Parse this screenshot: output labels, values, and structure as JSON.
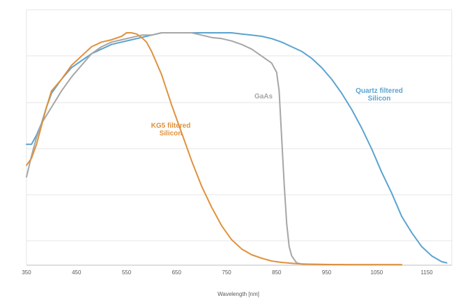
{
  "chart_data": {
    "type": "line",
    "title": "",
    "xlabel": "Wavelength [nm]",
    "ylabel": "",
    "xlim": [
      350,
      1200
    ],
    "ylim": [
      0,
      1
    ],
    "x_ticks": [
      350,
      450,
      550,
      650,
      750,
      850,
      950,
      1050,
      1150
    ],
    "x_tick_labels": [
      "350",
      "450",
      "550",
      "650",
      "750",
      "850",
      "950",
      "1050",
      "1150"
    ],
    "grid": true,
    "legend": "none",
    "series": [
      {
        "name": "Quartz filtered Silicon",
        "label_lines": [
          "Quartz filtered",
          "Silicon"
        ],
        "color": "#5ba3d0",
        "x": [
          350,
          360,
          370,
          380,
          390,
          400,
          420,
          440,
          460,
          480,
          500,
          520,
          540,
          560,
          580,
          600,
          620,
          640,
          660,
          680,
          700,
          720,
          740,
          760,
          780,
          800,
          820,
          840,
          860,
          880,
          900,
          920,
          940,
          960,
          980,
          1000,
          1020,
          1040,
          1060,
          1080,
          1100,
          1120,
          1140,
          1160,
          1180,
          1190
        ],
        "y": [
          0.52,
          0.52,
          0.56,
          0.61,
          0.68,
          0.74,
          0.8,
          0.85,
          0.88,
          0.91,
          0.93,
          0.95,
          0.96,
          0.97,
          0.98,
          0.99,
          1.0,
          1.0,
          1.0,
          1.0,
          1.0,
          1.0,
          1.0,
          1.0,
          0.995,
          0.99,
          0.985,
          0.975,
          0.96,
          0.94,
          0.92,
          0.89,
          0.85,
          0.8,
          0.74,
          0.67,
          0.59,
          0.5,
          0.4,
          0.31,
          0.21,
          0.14,
          0.08,
          0.04,
          0.015,
          0.01
        ]
      },
      {
        "name": "GaAs",
        "label_lines": [
          "GaAs"
        ],
        "color": "#a6a6a6",
        "x": [
          350,
          360,
          370,
          380,
          400,
          420,
          440,
          460,
          480,
          500,
          520,
          540,
          560,
          580,
          600,
          620,
          640,
          660,
          680,
          700,
          720,
          740,
          760,
          780,
          800,
          820,
          840,
          850,
          855,
          860,
          865,
          870,
          875,
          880,
          890,
          900,
          920,
          950,
          1000,
          1100
        ],
        "y": [
          0.38,
          0.47,
          0.55,
          0.61,
          0.68,
          0.75,
          0.81,
          0.86,
          0.91,
          0.94,
          0.96,
          0.97,
          0.98,
          0.99,
          0.99,
          1.0,
          1.0,
          1.0,
          1.0,
          0.99,
          0.98,
          0.975,
          0.965,
          0.95,
          0.93,
          0.9,
          0.87,
          0.83,
          0.75,
          0.55,
          0.35,
          0.18,
          0.08,
          0.04,
          0.01,
          0.005,
          0.004,
          0.003,
          0.002,
          0.002
        ]
      },
      {
        "name": "KG5 filtered Silicon",
        "label_lines": [
          "KG5 filtered",
          "Silicon"
        ],
        "color": "#e0913c",
        "x": [
          350,
          360,
          370,
          380,
          390,
          400,
          420,
          440,
          460,
          480,
          500,
          520,
          540,
          550,
          560,
          570,
          580,
          590,
          600,
          620,
          640,
          660,
          680,
          700,
          720,
          740,
          760,
          780,
          800,
          820,
          840,
          860,
          880,
          900,
          930,
          960,
          1000,
          1050,
          1100
        ],
        "y": [
          0.43,
          0.46,
          0.52,
          0.6,
          0.68,
          0.75,
          0.8,
          0.86,
          0.9,
          0.94,
          0.96,
          0.97,
          0.985,
          1.0,
          1.0,
          0.995,
          0.98,
          0.96,
          0.92,
          0.82,
          0.69,
          0.57,
          0.45,
          0.34,
          0.25,
          0.17,
          0.11,
          0.07,
          0.045,
          0.03,
          0.018,
          0.012,
          0.008,
          0.005,
          0.004,
          0.003,
          0.002,
          0.002,
          0.002
        ]
      }
    ]
  }
}
